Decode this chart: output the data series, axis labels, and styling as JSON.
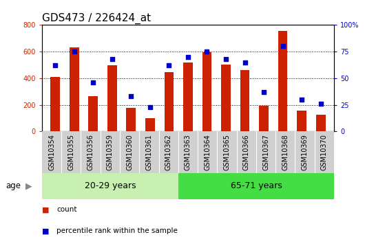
{
  "title": "GDS473 / 226424_at",
  "categories": [
    "GSM10354",
    "GSM10355",
    "GSM10356",
    "GSM10359",
    "GSM10360",
    "GSM10361",
    "GSM10362",
    "GSM10363",
    "GSM10364",
    "GSM10365",
    "GSM10366",
    "GSM10367",
    "GSM10368",
    "GSM10369",
    "GSM10370"
  ],
  "counts": [
    410,
    630,
    265,
    495,
    178,
    100,
    448,
    520,
    595,
    500,
    462,
    193,
    755,
    158,
    125
  ],
  "percentiles": [
    62,
    75,
    46,
    68,
    33,
    23,
    62,
    70,
    75,
    68,
    65,
    37,
    80,
    30,
    26
  ],
  "group1_label": "20-29 years",
  "group2_label": "65-71 years",
  "group1_count": 7,
  "ylim_left": [
    0,
    800
  ],
  "ylim_right": [
    0,
    100
  ],
  "yticks_left": [
    0,
    200,
    400,
    600,
    800
  ],
  "yticks_right": [
    0,
    25,
    50,
    75,
    100
  ],
  "bar_color": "#cc2200",
  "dot_color": "#0000cc",
  "group1_bg": "#c8f0b0",
  "group2_bg": "#44dd44",
  "tick_bg": "#d0d0d0",
  "grid_color": "#000000",
  "title_fontsize": 11,
  "tick_fontsize": 7,
  "bar_width": 0.5
}
